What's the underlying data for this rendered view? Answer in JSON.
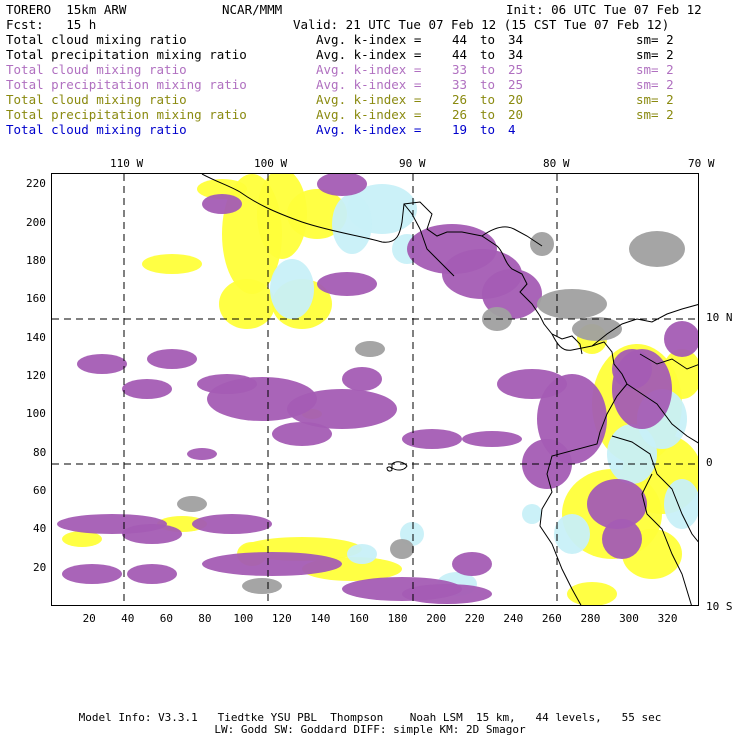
{
  "header": {
    "model": "TORERO  15km ARW",
    "org": "NCAR/MMM",
    "init": "Init: 06 UTC Tue 07 Feb 12",
    "fcst": "Fcst:   15 h",
    "valid": "Valid: 21 UTC Tue 07 Feb 12 (15 CST Tue 07 Feb 12)"
  },
  "legend": [
    {
      "label": "Total cloud mixing ratio",
      "avg": "Avg. k-index =",
      "v1": "44",
      "to": "to",
      "v2": "34",
      "sm": "sm= 2",
      "color": "#000000"
    },
    {
      "label": "Total precipitation mixing ratio",
      "avg": "Avg. k-index =",
      "v1": "44",
      "to": "to",
      "v2": "34",
      "sm": "sm= 2",
      "color": "#000000"
    },
    {
      "label": "Total cloud mixing ratio",
      "avg": "Avg. k-index =",
      "v1": "33",
      "to": "to",
      "v2": "25",
      "sm": "sm= 2",
      "color": "#b070c0"
    },
    {
      "label": "Total precipitation mixing ratio",
      "avg": "Avg. k-index =",
      "v1": "33",
      "to": "to",
      "v2": "25",
      "sm": "sm= 2",
      "color": "#b070c0"
    },
    {
      "label": "Total cloud mixing ratio",
      "avg": "Avg. k-index =",
      "v1": "26",
      "to": "to",
      "v2": "20",
      "sm": "sm= 2",
      "color": "#8a8a10"
    },
    {
      "label": "Total precipitation mixing ratio",
      "avg": "Avg. k-index =",
      "v1": "26",
      "to": "to",
      "v2": "20",
      "sm": "sm= 2",
      "color": "#8a8a10"
    },
    {
      "label": "Total cloud mixing ratio",
      "avg": "Avg. k-index =",
      "v1": "19",
      "to": "to",
      "v2": "4",
      "sm": "",
      "color": "#0000cc"
    }
  ],
  "map": {
    "lon_labels": [
      "110 W",
      "100 W",
      "90 W",
      "80 W",
      "70 W"
    ],
    "lat_labels": [
      "10 N",
      "0",
      "10 S"
    ],
    "y_ticks": [
      "220",
      "200",
      "180",
      "160",
      "140",
      "120",
      "100",
      "80",
      "60",
      "40",
      "20"
    ],
    "x_ticks": [
      "20",
      "40",
      "60",
      "80",
      "100",
      "120",
      "140",
      "160",
      "180",
      "200",
      "220",
      "240",
      "260",
      "280",
      "300",
      "320"
    ],
    "colors": {
      "purple": "#a45cb4",
      "yellow": "#ffff3a",
      "lightblue": "#c8f0f8",
      "gray": "#a0a0a0"
    }
  },
  "footer": {
    "line1": "Model Info: V3.3.1   Tiedtke YSU PBL  Thompson    Noah LSM  15 km,   44 levels,   55 sec",
    "line2": "LW: Godd SW: Goddard DIFF: simple KM: 2D Smagor"
  }
}
